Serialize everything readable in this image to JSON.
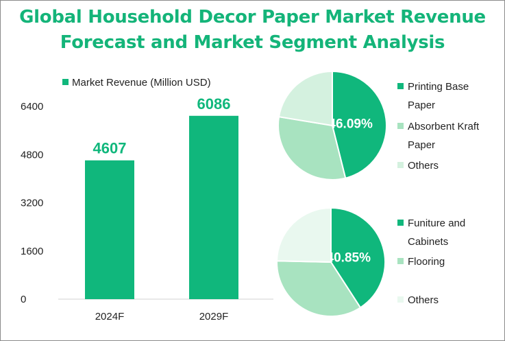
{
  "title_line1": "Global Household Decor Paper Market Revenue",
  "title_line2": "Forecast and Market Segment Analysis",
  "colors": {
    "bar": "#10b77c",
    "title": "#14b479",
    "pie": [
      "#10b77c",
      "#a8e3c0",
      "#d4f1df",
      "#e9f8ef"
    ]
  },
  "chart_data": [
    {
      "type": "bar",
      "legend": "Market Revenue (Million USD)",
      "categories": [
        "2024F",
        "2029F"
      ],
      "values": [
        4607,
        6086
      ],
      "ylim": [
        0,
        6400
      ],
      "yticks": [
        "0",
        "1600",
        "3200",
        "4800",
        "6400"
      ],
      "ytick_values": [
        0,
        1600,
        3200,
        4800,
        6400
      ],
      "grid": false
    },
    {
      "type": "pie",
      "slices": [
        {
          "label": "Printing Base Paper",
          "value": 46.09,
          "display": "46.09%"
        },
        {
          "label": "Absorbent Kraft Paper",
          "value": 31.5,
          "display": ""
        },
        {
          "label": "Others",
          "value": 22.41,
          "display": ""
        }
      ],
      "legend_placement": "right"
    },
    {
      "type": "pie",
      "slices": [
        {
          "label": "Funiture and Cabinets",
          "value": 40.85,
          "display": "40.85%"
        },
        {
          "label": "Flooring",
          "value": 34.5,
          "display": ""
        },
        {
          "label": "Others",
          "value": 24.65,
          "display": ""
        }
      ],
      "legend_placement": "right"
    }
  ]
}
